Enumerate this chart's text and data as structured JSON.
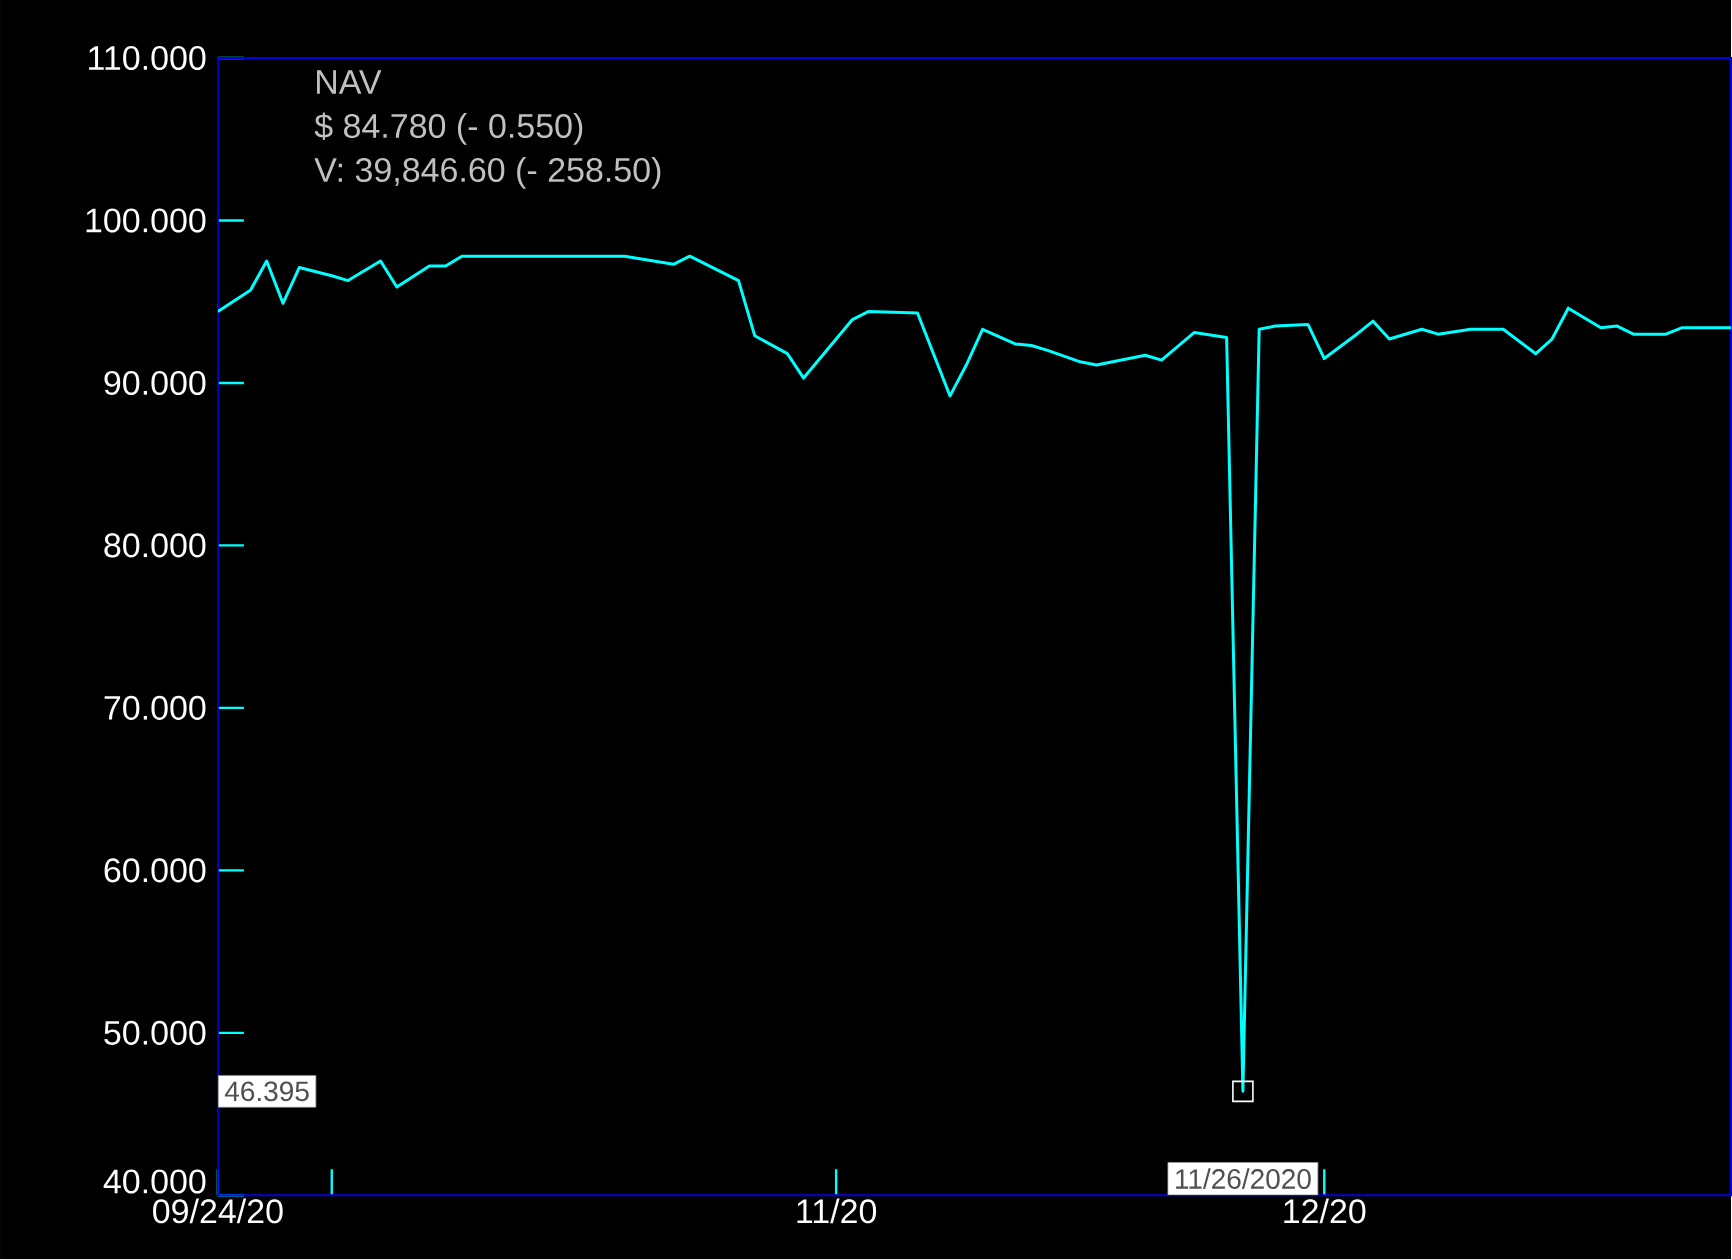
{
  "chart_data": {
    "type": "line",
    "title": "NAV",
    "annotations": [
      "$ 84.780 (- 0.550)",
      "V: 39,846.60 (- 258.50)",
      {
        "text": "11/26/2020",
        "x": "2020-11-26",
        "y": 46.4
      },
      "46.395"
    ],
    "x": [
      "2020-09-24",
      "2020-09-26",
      "2020-09-27",
      "2020-09-28",
      "2020-09-29",
      "2020-10-01",
      "2020-10-02",
      "2020-10-04",
      "2020-10-05",
      "2020-10-07",
      "2020-10-08",
      "2020-10-09",
      "2020-10-19",
      "2020-10-22",
      "2020-10-23",
      "2020-10-26",
      "2020-10-27",
      "2020-10-29",
      "2020-10-30",
      "2020-11-01",
      "2020-11-02",
      "2020-11-03",
      "2020-11-06",
      "2020-11-08",
      "2020-11-09",
      "2020-11-10",
      "2020-11-12",
      "2020-11-13",
      "2020-11-14",
      "2020-11-16",
      "2020-11-17",
      "2020-11-19",
      "2020-11-20",
      "2020-11-21",
      "2020-11-23",
      "2020-11-25",
      "2020-11-26",
      "2020-11-27",
      "2020-11-28",
      "2020-11-30",
      "2020-12-01",
      "2020-12-03",
      "2020-12-04",
      "2020-12-05",
      "2020-12-07",
      "2020-12-08",
      "2020-12-10",
      "2020-12-12",
      "2020-12-14",
      "2020-12-15",
      "2020-12-16",
      "2020-12-18",
      "2020-12-19",
      "2020-12-20",
      "2020-12-22",
      "2020-12-23",
      "2020-12-26"
    ],
    "values": [
      94.4,
      95.7,
      97.5,
      94.9,
      97.1,
      96.6,
      96.3,
      97.5,
      95.9,
      97.2,
      97.2,
      97.8,
      97.8,
      97.3,
      97.8,
      96.3,
      92.9,
      91.8,
      90.3,
      92.7,
      93.9,
      94.4,
      94.3,
      89.2,
      91.1,
      93.3,
      92.4,
      92.3,
      92.0,
      91.3,
      91.1,
      91.5,
      91.7,
      91.4,
      93.1,
      92.8,
      46.4,
      93.3,
      93.5,
      93.6,
      91.5,
      93.0,
      93.8,
      92.7,
      93.3,
      93.0,
      93.3,
      93.3,
      91.8,
      92.7,
      94.6,
      93.4,
      93.5,
      93.0,
      93.0,
      93.4,
      93.4
    ],
    "color": "#00ffff",
    "xlim": [
      "2020-09-24",
      "2020-12-26"
    ],
    "xticks": [
      {
        "value": "2020-09-24",
        "label": "09/24/20"
      },
      {
        "value": "2020-10-01",
        "label": null
      },
      {
        "value": "2020-11-01",
        "label": "11/20"
      },
      {
        "value": "2020-12-01",
        "label": "12/20"
      }
    ],
    "ylim": [
      40,
      110
    ],
    "yticks": [
      {
        "value": 40,
        "label": "40.000"
      },
      {
        "value": 50,
        "label": "50.000"
      },
      {
        "value": 60,
        "label": "60.000"
      },
      {
        "value": 70,
        "label": "70.000"
      },
      {
        "value": 80,
        "label": "80.000"
      },
      {
        "value": 90,
        "label": "90.000"
      },
      {
        "value": 100,
        "label": "100.000"
      },
      {
        "value": 110,
        "label": "110.000"
      }
    ]
  }
}
